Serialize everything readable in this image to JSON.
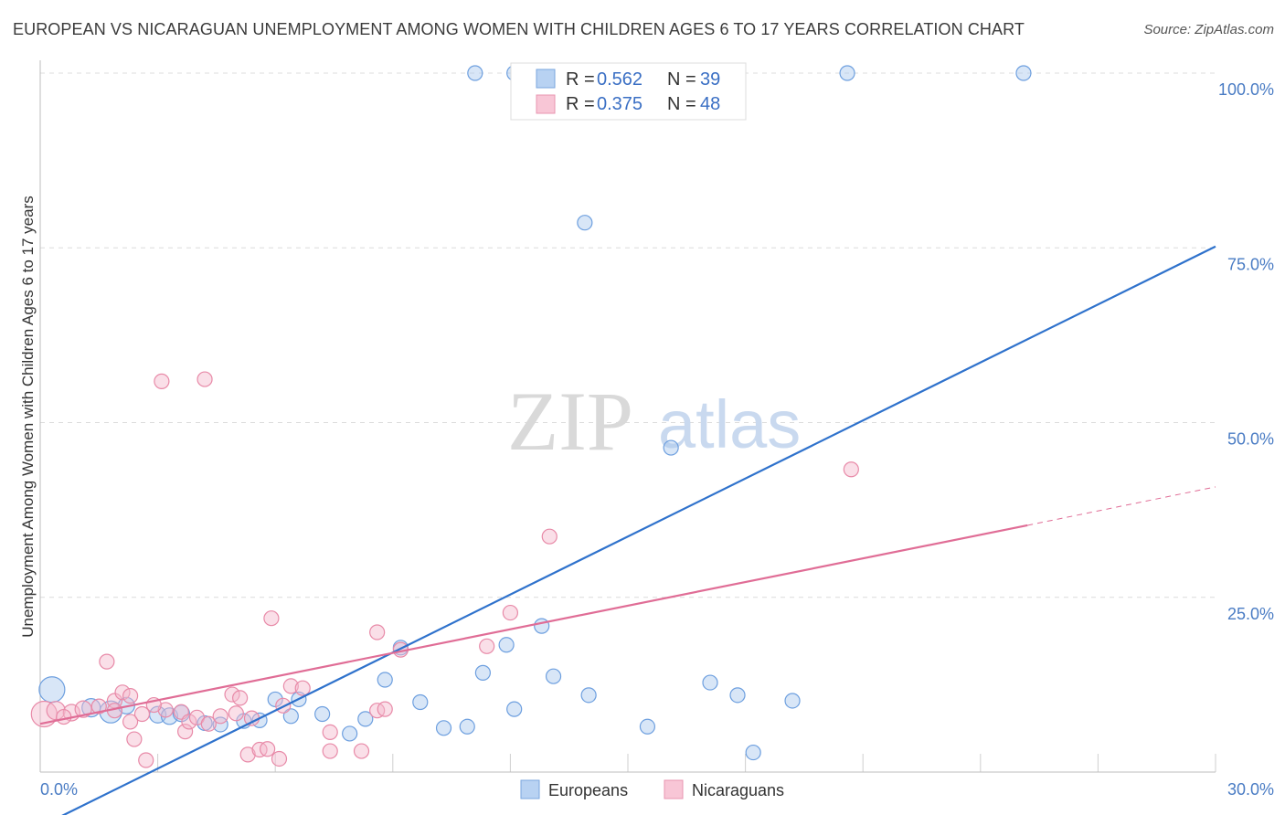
{
  "title": "EUROPEAN VS NICARAGUAN UNEMPLOYMENT AMONG WOMEN WITH CHILDREN AGES 6 TO 17 YEARS CORRELATION CHART",
  "source": "Source: ZipAtlas.com",
  "watermark": {
    "zip": "ZIP",
    "atlas": "atlas"
  },
  "chart_data": {
    "type": "scatter",
    "title": "EUROPEAN VS NICARAGUAN UNEMPLOYMENT AMONG WOMEN WITH CHILDREN AGES 6 TO 17 YEARS CORRELATION CHART",
    "xlabel": "",
    "ylabel": "Unemployment Among Women with Children Ages 6 to 17 years",
    "xlim": [
      0,
      30
    ],
    "ylim": [
      0,
      100
    ],
    "x_tick_labels": [
      {
        "value": 0,
        "label": "0.0%"
      },
      {
        "value": 30,
        "label": "30.0%"
      }
    ],
    "y_tick_labels": [
      {
        "value": 25,
        "label": "25.0%"
      },
      {
        "value": 50,
        "label": "50.0%"
      },
      {
        "value": 75,
        "label": "75.0%"
      },
      {
        "value": 100,
        "label": "100.0%"
      }
    ],
    "legend": [
      {
        "name": "R = ",
        "r": "0.562",
        "n_label": "N = ",
        "n": "39"
      },
      {
        "name": "R = ",
        "r": "0.375",
        "n_label": "N = ",
        "n": "48"
      }
    ],
    "series": [
      {
        "name": "Europeans",
        "color": "#a9c7ee",
        "stroke": "#6d9fdf",
        "trend": {
          "x0": 0,
          "y0": -7.8,
          "x1": 30,
          "y1": 75.2,
          "color": "#2f72cc"
        },
        "points": [
          [
            0.3,
            11.8,
            14
          ],
          [
            1.3,
            9.2,
            10
          ],
          [
            1.8,
            8.6,
            12
          ],
          [
            2.2,
            9.5,
            9
          ],
          [
            3.0,
            8.2,
            9
          ],
          [
            3.3,
            8.0,
            9
          ],
          [
            3.6,
            8.4,
            9
          ],
          [
            4.2,
            7.0,
            8
          ],
          [
            4.6,
            6.8,
            8
          ],
          [
            5.2,
            7.3,
            8
          ],
          [
            5.6,
            7.4,
            8
          ],
          [
            6.0,
            10.4,
            8
          ],
          [
            6.4,
            8.0,
            8
          ],
          [
            6.6,
            10.4,
            8
          ],
          [
            7.2,
            8.3,
            8
          ],
          [
            7.9,
            5.5,
            8
          ],
          [
            8.3,
            7.6,
            8
          ],
          [
            8.8,
            13.2,
            8
          ],
          [
            9.2,
            17.8,
            8
          ],
          [
            9.7,
            10.0,
            8
          ],
          [
            10.3,
            6.3,
            8
          ],
          [
            10.9,
            6.5,
            8
          ],
          [
            11.3,
            14.2,
            8
          ],
          [
            12.1,
            9.0,
            8
          ],
          [
            11.9,
            18.2,
            8
          ],
          [
            12.8,
            20.9,
            8
          ],
          [
            13.1,
            13.7,
            8
          ],
          [
            13.9,
            78.6,
            8
          ],
          [
            14.0,
            11.0,
            8
          ],
          [
            15.5,
            6.5,
            8
          ],
          [
            16.1,
            46.4,
            8
          ],
          [
            17.1,
            12.8,
            8
          ],
          [
            17.8,
            11.0,
            8
          ],
          [
            18.2,
            2.8,
            8
          ],
          [
            19.2,
            10.2,
            8
          ],
          [
            20.6,
            100.0,
            8
          ],
          [
            25.1,
            100.0,
            8
          ],
          [
            12.1,
            100.0,
            8
          ],
          [
            11.1,
            100.0,
            8
          ]
        ]
      },
      {
        "name": "Nicaraguans",
        "color": "#f4b7cb",
        "stroke": "#e88aa8",
        "trend": {
          "x0": 0,
          "y0": 6.9,
          "x1": 25.2,
          "y1": 35.3,
          "color": "#e06d96"
        },
        "trend_ext": {
          "x0": 25.2,
          "y0": 35.3,
          "x1": 30,
          "y1": 40.8
        },
        "points": [
          [
            0.1,
            8.3,
            14
          ],
          [
            0.4,
            8.8,
            10
          ],
          [
            0.8,
            8.5,
            9
          ],
          [
            1.1,
            9.0,
            9
          ],
          [
            1.7,
            15.8,
            8
          ],
          [
            1.9,
            10.2,
            8
          ],
          [
            2.1,
            11.4,
            8
          ],
          [
            1.9,
            8.8,
            8
          ],
          [
            2.6,
            8.3,
            8
          ],
          [
            2.3,
            10.9,
            8
          ],
          [
            2.3,
            7.2,
            8
          ],
          [
            2.4,
            4.7,
            8
          ],
          [
            2.7,
            1.7,
            8
          ],
          [
            3.2,
            8.9,
            8
          ],
          [
            3.1,
            55.9,
            8
          ],
          [
            3.6,
            8.6,
            8
          ],
          [
            3.7,
            5.8,
            8
          ],
          [
            3.8,
            7.2,
            8
          ],
          [
            4.0,
            7.8,
            8
          ],
          [
            4.2,
            56.2,
            8
          ],
          [
            4.3,
            6.9,
            8
          ],
          [
            4.6,
            8.0,
            8
          ],
          [
            4.9,
            11.1,
            8
          ],
          [
            5.1,
            10.6,
            8
          ],
          [
            5.3,
            2.5,
            8
          ],
          [
            5.4,
            7.7,
            8
          ],
          [
            5.6,
            3.2,
            8
          ],
          [
            5.8,
            3.3,
            8
          ],
          [
            5.9,
            22.0,
            8
          ],
          [
            6.1,
            1.9,
            8
          ],
          [
            6.2,
            9.5,
            8
          ],
          [
            6.4,
            12.3,
            8
          ],
          [
            6.7,
            12.0,
            8
          ],
          [
            7.4,
            3.0,
            8
          ],
          [
            7.4,
            5.7,
            8
          ],
          [
            8.2,
            3.0,
            8
          ],
          [
            8.6,
            8.8,
            8
          ],
          [
            8.6,
            20.0,
            8
          ],
          [
            8.8,
            9.0,
            8
          ],
          [
            9.2,
            17.5,
            8
          ],
          [
            11.4,
            18.0,
            8
          ],
          [
            12.0,
            22.8,
            8
          ],
          [
            13.0,
            33.7,
            8
          ],
          [
            20.7,
            43.3,
            8
          ],
          [
            1.5,
            9.4,
            8
          ],
          [
            2.9,
            9.6,
            8
          ],
          [
            0.6,
            7.9,
            8
          ],
          [
            5.0,
            8.4,
            8
          ]
        ]
      }
    ]
  },
  "bottom_legend": [
    {
      "label": "Europeans"
    },
    {
      "label": "Nicaraguans"
    }
  ]
}
